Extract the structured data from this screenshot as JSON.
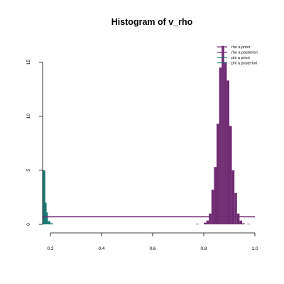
{
  "chart_data": {
    "type": "histogram",
    "title": "Histogram of v_rho",
    "xlabel": "",
    "ylabel": "",
    "xlim": [
      0.17,
      1.0
    ],
    "ylim": [
      0,
      16.5
    ],
    "x_ticks": [
      0.2,
      0.4,
      0.6,
      0.8,
      1.0
    ],
    "x_tick_labels": [
      "0.2",
      "0.4",
      "0.6",
      "0.8",
      "1.0"
    ],
    "y_ticks": [
      0,
      5,
      10,
      15
    ],
    "y_tick_labels": [
      "0",
      "5",
      "10",
      "15"
    ],
    "grid": false,
    "legend_position": "top-right",
    "legend": [
      {
        "label": "rho a priori",
        "color": "#6f2c72"
      },
      {
        "label": "rho a posteriori",
        "color": "#6f2c72"
      },
      {
        "label": "phi a priori",
        "color": "#0e7470"
      },
      {
        "label": "phi a posteriori",
        "color": "#0e7470"
      }
    ],
    "series": [
      {
        "color": "#1a7873",
        "bin_width": 0.01,
        "bins": [
          {
            "x0": 0.17,
            "count": 5.0
          },
          {
            "x0": 0.175,
            "count": 2.0
          },
          {
            "x0": 0.18,
            "count": 1.1
          },
          {
            "x0": 0.19,
            "count": 0.3
          },
          {
            "x0": 0.2,
            "count": 0.1
          }
        ]
      },
      {
        "color": "#6f2c72",
        "bin_width": 0.01,
        "bins": [
          {
            "x0": 0.77,
            "count": 0.05
          },
          {
            "x0": 0.8,
            "count": 0.15
          },
          {
            "x0": 0.81,
            "count": 0.35
          },
          {
            "x0": 0.82,
            "count": 1.0
          },
          {
            "x0": 0.83,
            "count": 3.2
          },
          {
            "x0": 0.84,
            "count": 5.3
          },
          {
            "x0": 0.85,
            "count": 9.3
          },
          {
            "x0": 0.86,
            "count": 14.5
          },
          {
            "x0": 0.87,
            "count": 16.5
          },
          {
            "x0": 0.88,
            "count": 15.0
          },
          {
            "x0": 0.89,
            "count": 13.3
          },
          {
            "x0": 0.9,
            "count": 9.1
          },
          {
            "x0": 0.91,
            "count": 5.0
          },
          {
            "x0": 0.92,
            "count": 2.9
          },
          {
            "x0": 0.93,
            "count": 1.0
          },
          {
            "x0": 0.94,
            "count": 0.35
          },
          {
            "x0": 0.95,
            "count": 0.1
          },
          {
            "x0": 0.97,
            "count": 0.05
          }
        ]
      }
    ],
    "reference_lines": [
      {
        "y": 0.7,
        "x_from": 0.17,
        "x_to": 1.0,
        "color": "#6f2c72"
      }
    ]
  }
}
